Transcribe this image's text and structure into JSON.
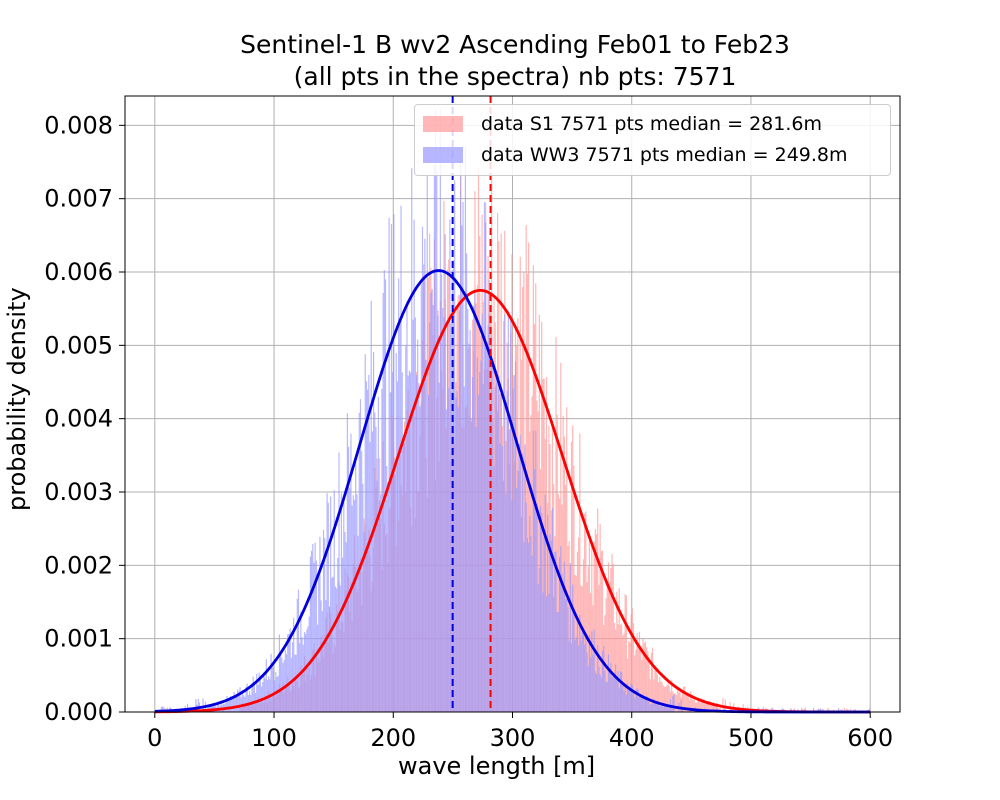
{
  "chart_data": {
    "type": "bar",
    "title_line1": "Sentinel-1 B wv2 Ascending Feb01 to Feb23",
    "title_line2": "(all pts in the spectra) nb pts: 7571",
    "xlabel": "wave length [m]",
    "ylabel": "probability density",
    "xlim": [
      -25,
      625
    ],
    "ylim": [
      0,
      0.0084
    ],
    "xticks": [
      0,
      100,
      200,
      300,
      400,
      500,
      600
    ],
    "yticks": [
      0.0,
      0.001,
      0.002,
      0.003,
      0.004,
      0.005,
      0.006,
      0.007,
      0.008
    ],
    "ytick_labels": [
      "0.000",
      "0.001",
      "0.002",
      "0.003",
      "0.004",
      "0.005",
      "0.006",
      "0.007",
      "0.008"
    ],
    "grid": true,
    "legend_position": "top-right",
    "series": [
      {
        "name": "data S1 7571 pts median = 281.6m",
        "kind": "histogram",
        "color": "#ff9999",
        "alpha": 0.7,
        "fit": {
          "mean": 273,
          "std": 69,
          "peak": 0.00575,
          "color": "#ff0000"
        },
        "median": 281.6,
        "median_color": "#ff0000"
      },
      {
        "name": "data WW3 7571 pts median = 249.8m",
        "kind": "histogram",
        "color": "#9999ff",
        "alpha": 0.7,
        "fit": {
          "mean": 238,
          "std": 66,
          "peak": 0.00602,
          "color": "#0000dd"
        },
        "median": 249.8,
        "median_color": "#0000dd"
      }
    ]
  }
}
